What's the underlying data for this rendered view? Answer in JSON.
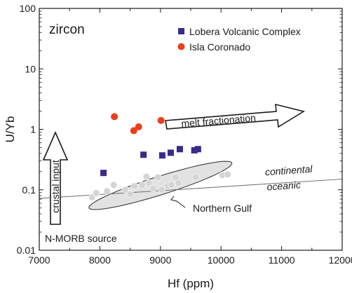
{
  "chart_data": {
    "type": "scatter",
    "xlabel": "Hf (ppm)",
    "ylabel": "U/Yb",
    "xlim": [
      7000,
      12000
    ],
    "ylim": [
      0.01,
      100
    ],
    "y_scale": "log",
    "x_ticks": [
      7000,
      8000,
      9000,
      10000,
      11000,
      12000
    ],
    "y_ticks": [
      0.01,
      0.1,
      1,
      10,
      100
    ],
    "y_tick_labels": [
      "0.01",
      "0.1",
      "1",
      "10",
      "100"
    ],
    "grid": false,
    "legend_position": "top-right",
    "series": [
      {
        "name": "Lobera Volcanic Complex",
        "marker": "square",
        "color": "#3b2a8c",
        "points": [
          {
            "x": 8060,
            "y": 0.19
          },
          {
            "x": 8720,
            "y": 0.38
          },
          {
            "x": 9030,
            "y": 0.37
          },
          {
            "x": 9170,
            "y": 0.41
          },
          {
            "x": 9320,
            "y": 0.47
          },
          {
            "x": 9560,
            "y": 0.45
          },
          {
            "x": 9620,
            "y": 0.47
          }
        ]
      },
      {
        "name": "Isla Coronado",
        "marker": "circle",
        "color": "#e8401c",
        "points": [
          {
            "x": 8240,
            "y": 1.62
          },
          {
            "x": 8560,
            "y": 0.95
          },
          {
            "x": 8640,
            "y": 1.1
          },
          {
            "x": 9010,
            "y": 1.4
          }
        ]
      },
      {
        "name": "Northern Gulf",
        "marker": "circle",
        "color": "#d4d4d4",
        "points": [
          {
            "x": 7870,
            "y": 0.075
          },
          {
            "x": 7940,
            "y": 0.088
          },
          {
            "x": 8120,
            "y": 0.095
          },
          {
            "x": 8230,
            "y": 0.12
          },
          {
            "x": 8420,
            "y": 0.1
          },
          {
            "x": 8500,
            "y": 0.085
          },
          {
            "x": 8570,
            "y": 0.115
          },
          {
            "x": 8700,
            "y": 0.12
          },
          {
            "x": 8770,
            "y": 0.165
          },
          {
            "x": 8810,
            "y": 0.13
          },
          {
            "x": 8880,
            "y": 0.105
          },
          {
            "x": 8960,
            "y": 0.16
          },
          {
            "x": 9020,
            "y": 0.1
          },
          {
            "x": 9120,
            "y": 0.115
          },
          {
            "x": 9180,
            "y": 0.12
          },
          {
            "x": 9250,
            "y": 0.16
          },
          {
            "x": 9300,
            "y": 0.13
          },
          {
            "x": 9580,
            "y": 0.16
          },
          {
            "x": 10020,
            "y": 0.175
          },
          {
            "x": 10110,
            "y": 0.18
          }
        ]
      }
    ],
    "field": {
      "label": "Northern Gulf",
      "center_x": 9000,
      "center_y": 0.118,
      "half_length_hf": 1180,
      "half_width_log": 0.16,
      "tilt_log_per_hf": 0.00031,
      "fill": "#e2e2e2"
    },
    "divide_line": {
      "x1": 7000,
      "y1": 0.072,
      "x2": 12000,
      "y2": 0.15,
      "label_above": "continental",
      "label_below": "oceanic"
    },
    "annotations": {
      "mineral": "zircon",
      "source": "N-MORB source",
      "arrow_crustal": "crustal input",
      "arrow_fractionation": "melt fractionation"
    }
  }
}
